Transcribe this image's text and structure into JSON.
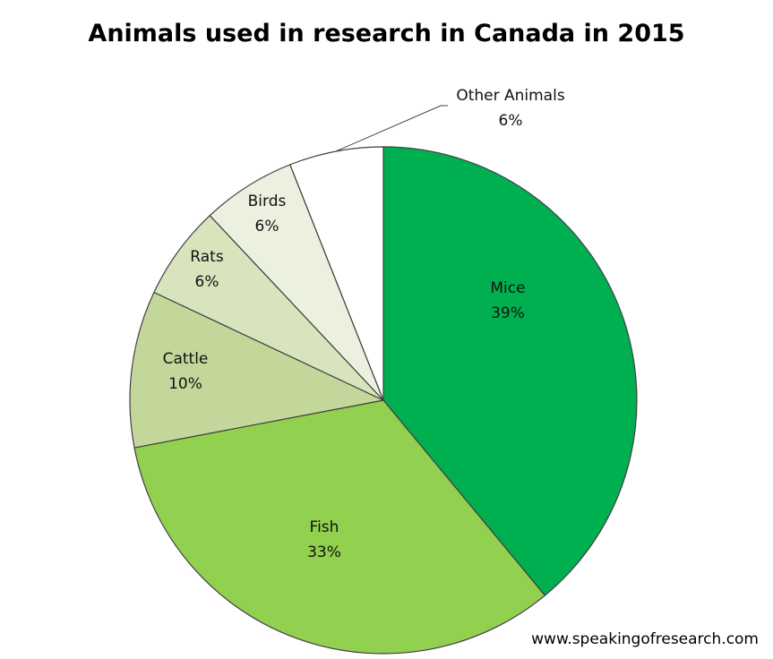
{
  "chart_data": {
    "type": "pie",
    "title": "Animals used in research in Canada in 2015",
    "start_angle": "12 o'clock",
    "direction": "clockwise",
    "slices": [
      {
        "label": "Mice",
        "value": 39,
        "value_label": "39%",
        "color": "#00b050"
      },
      {
        "label": "Fish",
        "value": 33,
        "value_label": "33%",
        "color": "#92d050"
      },
      {
        "label": "Cattle",
        "value": 10,
        "value_label": "10%",
        "color": "#c4d79b"
      },
      {
        "label": "Rats",
        "value": 6,
        "value_label": "6%",
        "color": "#d8e4bc"
      },
      {
        "label": "Birds",
        "value": 6,
        "value_label": "6%",
        "color": "#ebf1de"
      },
      {
        "label": "Other Animals",
        "value": 6,
        "value_label": "6%",
        "color": "#ffffff"
      }
    ],
    "legend": "none",
    "source": "www.speakingofresearch.com"
  }
}
